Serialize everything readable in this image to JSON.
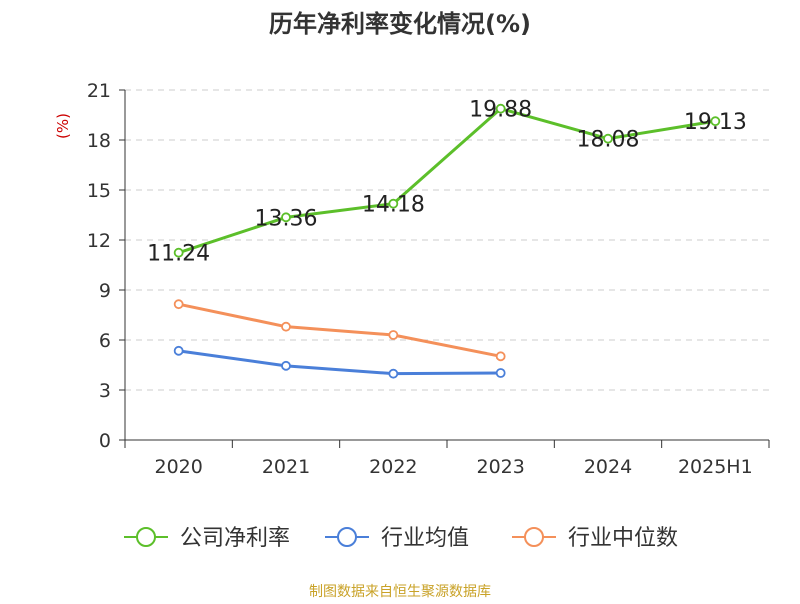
{
  "chart_data": {
    "type": "line",
    "title": "历年净利率变化情况(%)",
    "ylabel": "(%)",
    "categories": [
      "2020",
      "2021",
      "2022",
      "2023",
      "2024",
      "2025H1"
    ],
    "ylim": [
      0,
      21
    ],
    "yticks": [
      0,
      3,
      6,
      9,
      12,
      15,
      18,
      21
    ],
    "grid": true,
    "legend_position": "bottom",
    "series": [
      {
        "name": "公司净利率",
        "color": "#5cbf2a",
        "values": [
          11.24,
          13.36,
          14.18,
          19.88,
          18.08,
          19.13
        ],
        "labels": [
          "11.24",
          "13.36",
          "14.18",
          "19.88",
          "18.08",
          "19.13"
        ]
      },
      {
        "name": "行业均值",
        "color": "#4a7fd9",
        "values": [
          5.35,
          4.45,
          3.98,
          4.02,
          null,
          null
        ]
      },
      {
        "name": "行业中位数",
        "color": "#f4905a",
        "values": [
          8.15,
          6.8,
          6.3,
          5.02,
          null,
          null
        ]
      }
    ]
  },
  "source": {
    "text": "制图数据来自恒生聚源数据库",
    "color": "#c9a227"
  }
}
